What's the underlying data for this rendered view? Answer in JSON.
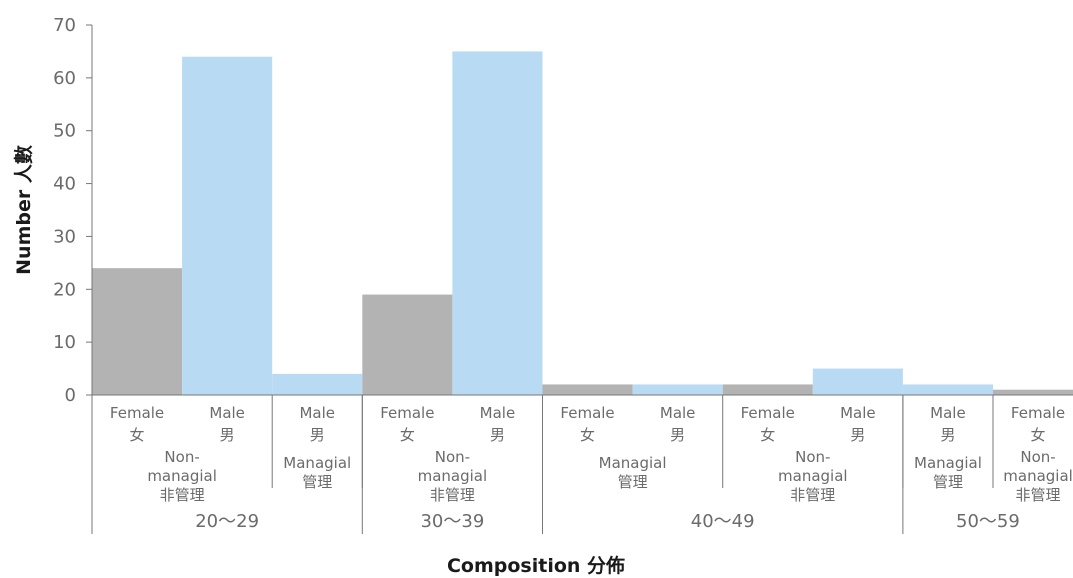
{
  "chart_data": {
    "type": "bar",
    "ylabel": "Number 人數",
    "xlabel": "Composition 分佈",
    "ylim": [
      0,
      70
    ],
    "yticks": [
      0,
      10,
      20,
      30,
      40,
      50,
      60,
      70
    ],
    "grid": false,
    "legend": "none",
    "colors": {
      "Female": "#b3b3b3",
      "Male": "#b8daf2"
    },
    "bars": [
      {
        "gender": "Female",
        "gender_zh": "女",
        "value": 24
      },
      {
        "gender": "Male",
        "gender_zh": "男",
        "value": 64
      },
      {
        "gender": "Male",
        "gender_zh": "男",
        "value": 4
      },
      {
        "gender": "Female",
        "gender_zh": "女",
        "value": 19
      },
      {
        "gender": "Male",
        "gender_zh": "男",
        "value": 65
      },
      {
        "gender": "Female",
        "gender_zh": "女",
        "value": 2
      },
      {
        "gender": "Male",
        "gender_zh": "男",
        "value": 2
      },
      {
        "gender": "Female",
        "gender_zh": "女",
        "value": 2
      },
      {
        "gender": "Male",
        "gender_zh": "男",
        "value": 5
      },
      {
        "gender": "Male",
        "gender_zh": "男",
        "value": 2
      },
      {
        "gender": "Female",
        "gender_zh": "女",
        "value": 1
      }
    ],
    "roles": [
      {
        "lines": [
          "Non-",
          "managial",
          "非管理"
        ],
        "start": 0,
        "end": 1
      },
      {
        "lines": [
          "Managial",
          "管理"
        ],
        "start": 2,
        "end": 2
      },
      {
        "lines": [
          "Non-",
          "managial",
          "非管理"
        ],
        "start": 3,
        "end": 4
      },
      {
        "lines": [
          "Managial",
          "管理"
        ],
        "start": 5,
        "end": 6
      },
      {
        "lines": [
          "Non-",
          "managial",
          "非管理"
        ],
        "start": 7,
        "end": 8
      },
      {
        "lines": [
          "Managial",
          "管理"
        ],
        "start": 9,
        "end": 9
      },
      {
        "lines": [
          "Non-",
          "managial",
          "非管理"
        ],
        "start": 10,
        "end": 10
      }
    ],
    "age_groups": [
      {
        "label": "20～29",
        "start": 0,
        "end": 2
      },
      {
        "label": "30～39",
        "start": 3,
        "end": 4
      },
      {
        "label": "40～49",
        "start": 5,
        "end": 8
      },
      {
        "label": "50～59",
        "start": 9,
        "end": 10
      }
    ]
  }
}
